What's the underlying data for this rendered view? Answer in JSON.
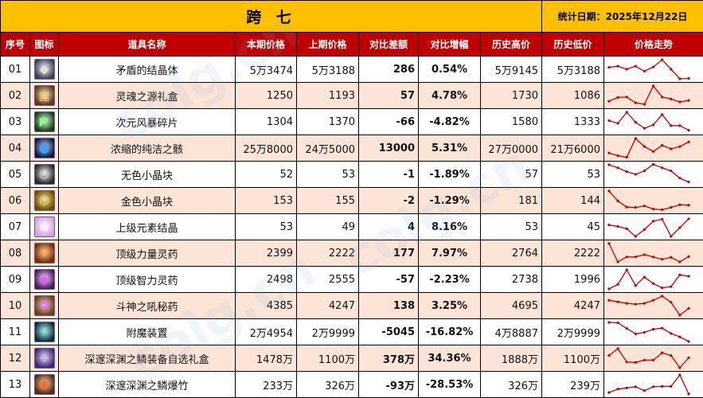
{
  "title": "跨 七",
  "stat_date": "统计日期：2025年12月22日",
  "headers": [
    "序号",
    "图标",
    "道具名称",
    "本期价格",
    "上期价格",
    "对比差额",
    "对比增幅",
    "历史高价",
    "历史低价",
    "价格走势"
  ],
  "colors": {
    "title_bg": "#ffc000",
    "header_bg": "#c00000",
    "alt_row_bg": "#fce4d6",
    "increase": "#ff0000",
    "decrease": "#00b050",
    "sparkline": "#c00000"
  },
  "rows": [
    {
      "idx": "01",
      "icon": "crystal-icon",
      "icon_glyph": "◆",
      "icon_bg": "#3a3f5a",
      "icon_fg": "#e8e0d0",
      "name": "矛盾的结晶体",
      "current": "5万3474",
      "previous": "5万3188",
      "diff": "286",
      "pct": "0.54%",
      "trend": "up",
      "high": "5万9145",
      "low": "5万3188",
      "spark": [
        3,
        3.3,
        2.5,
        3.3,
        2,
        3.1,
        5,
        2.5,
        0,
        0.1
      ]
    },
    {
      "idx": "02",
      "icon": "gift-box-icon",
      "icon_glyph": "▣",
      "icon_bg": "#5a3a18",
      "icon_fg": "#f0d080",
      "name": "灵魂之源礼盒",
      "current": "1250",
      "previous": "1193",
      "diff": "57",
      "pct": "4.78%",
      "trend": "up",
      "high": "1730",
      "low": "1086",
      "spark": [
        1,
        2,
        2.1,
        0.6,
        0.2,
        5,
        2.1,
        1.6,
        0.8,
        1.2
      ]
    },
    {
      "idx": "03",
      "icon": "shard-icon",
      "icon_glyph": "◤",
      "icon_bg": "#1a3a1a",
      "icon_fg": "#80ff80",
      "name": "次元风暴碎片",
      "current": "1304",
      "previous": "1370",
      "diff": "-66",
      "pct": "-4.82%",
      "trend": "down",
      "high": "1580",
      "low": "1333",
      "spark": [
        2.8,
        2.1,
        5,
        2.4,
        0.8,
        1.7,
        4.4,
        1.5,
        1.5,
        0.3
      ]
    },
    {
      "idx": "04",
      "icon": "essence-orb-icon",
      "icon_glyph": "●",
      "icon_bg": "#0a1a4a",
      "icon_fg": "#3aa0ff",
      "name": "浓缩的纯洁之骸",
      "current": "25万8000",
      "previous": "24万5000",
      "diff": "13000",
      "pct": "5.31%",
      "trend": "up",
      "high": "27万0000",
      "low": "21万6000",
      "spark": [
        1.2,
        0.5,
        0.1,
        5,
        2.9,
        1.6,
        3.2,
        2.3,
        2.9,
        4.1
      ]
    },
    {
      "idx": "05",
      "icon": "colorless-cube-icon",
      "icon_glyph": "⬡",
      "icon_bg": "#2a2a2a",
      "icon_fg": "#cfcfcf",
      "name": "无色小晶块",
      "current": "52",
      "previous": "53",
      "diff": "-1",
      "pct": "-1.89%",
      "trend": "down",
      "high": "57",
      "low": "53",
      "spark": [
        5,
        4.2,
        3.2,
        2.5,
        3.4,
        5.1,
        4.2,
        3.4,
        1.5,
        0.5
      ]
    },
    {
      "idx": "06",
      "icon": "gold-cube-icon",
      "icon_glyph": "⬡",
      "icon_bg": "#6a5000",
      "icon_fg": "#ffd84a",
      "name": "金色小晶块",
      "current": "153",
      "previous": "155",
      "diff": "-2",
      "pct": "-1.29%",
      "trend": "down",
      "high": "181",
      "low": "144",
      "spark": [
        5,
        2.4,
        0.8,
        0.7,
        1.1,
        0.3,
        0.1,
        0.7,
        1.4,
        1.3
      ]
    },
    {
      "idx": "07",
      "icon": "element-crystal-icon",
      "icon_glyph": "✿",
      "icon_bg": "#d9a0e0",
      "icon_fg": "#fff0ff",
      "name": "上级元素结晶",
      "current": "53",
      "previous": "49",
      "diff": "4",
      "pct": "8.16%",
      "trend": "up",
      "high": "53",
      "low": "45",
      "spark": [
        3,
        2.6,
        2,
        0,
        1.8,
        4,
        4.5,
        0,
        2.3,
        4.6
      ]
    },
    {
      "idx": "08",
      "icon": "strength-potion-icon",
      "icon_glyph": "✦",
      "icon_bg": "#7a2a00",
      "icon_fg": "#ffae30",
      "name": "顶级力量灵药",
      "current": "2399",
      "previous": "2222",
      "diff": "177",
      "pct": "7.97%",
      "trend": "up",
      "high": "2764",
      "low": "2222",
      "spark": [
        5,
        0.2,
        1.5,
        1.5,
        2.1,
        1.5,
        0.9,
        1.4,
        0.2,
        1.6
      ]
    },
    {
      "idx": "09",
      "icon": "intelligence-potion-icon",
      "icon_glyph": "◆",
      "icon_bg": "#4a1a5a",
      "icon_fg": "#e060ff",
      "name": "顶级智力灵药",
      "current": "2498",
      "previous": "2555",
      "diff": "-57",
      "pct": "-2.23%",
      "trend": "down",
      "high": "2738",
      "low": "1996",
      "spark": [
        0,
        1.2,
        5,
        0.9,
        3.1,
        1.4,
        0.3,
        0.6,
        3.7,
        3.3
      ]
    },
    {
      "idx": "10",
      "icon": "war-god-elixir-icon",
      "icon_glyph": "⚗",
      "icon_bg": "#6a4010",
      "icon_fg": "#e070ff",
      "name": "斗神之吼秘药",
      "current": "4385",
      "previous": "4247",
      "diff": "138",
      "pct": "3.25%",
      "trend": "up",
      "high": "4695",
      "low": "4247",
      "spark": [
        3.9,
        3.5,
        3.1,
        2.9,
        3.1,
        3.9,
        5,
        3.4,
        0,
        1.8
      ]
    },
    {
      "idx": "11",
      "icon": "enchant-device-icon",
      "icon_glyph": "⌗",
      "icon_bg": "#0a2a3a",
      "icon_fg": "#30e0e0",
      "name": "附魔装置",
      "current": "2万4954",
      "previous": "2万9999",
      "diff": "-5045",
      "pct": "-16.82%",
      "trend": "down",
      "high": "4万8887",
      "low": "2万9999",
      "spark": [
        5,
        4.9,
        3.4,
        2,
        2.4,
        3.2,
        3.5,
        2.1,
        1.2,
        0
      ]
    },
    {
      "idx": "12",
      "icon": "abyss-gift-box-icon",
      "icon_glyph": "❖",
      "icon_bg": "#3a2a7a",
      "icon_fg": "#c0b0ff",
      "name": "深邃深渊之鳞装备自选礼盒",
      "current": "1478万",
      "previous": "1100万",
      "diff": "378万",
      "pct": "34.36%",
      "trend": "up",
      "high": "1888万",
      "low": "1100万",
      "spark": [
        3.2,
        5,
        1.5,
        1.4,
        2,
        2,
        3.9,
        3.2,
        0,
        2.6
      ]
    },
    {
      "idx": "13",
      "icon": "abyss-firecracker-icon",
      "icon_glyph": "✹",
      "icon_bg": "#5a2a0a",
      "icon_fg": "#ff6a20",
      "name": "深邃深渊之鳞爆竹",
      "current": "233万",
      "previous": "326万",
      "diff": "-93万",
      "pct": "-28.53%",
      "trend": "down",
      "high": "326万",
      "low": "239万",
      "spark": [
        0.4,
        1.3,
        1.6,
        1.9,
        0.9,
        1.9,
        2,
        2,
        5,
        0
      ]
    }
  ]
}
